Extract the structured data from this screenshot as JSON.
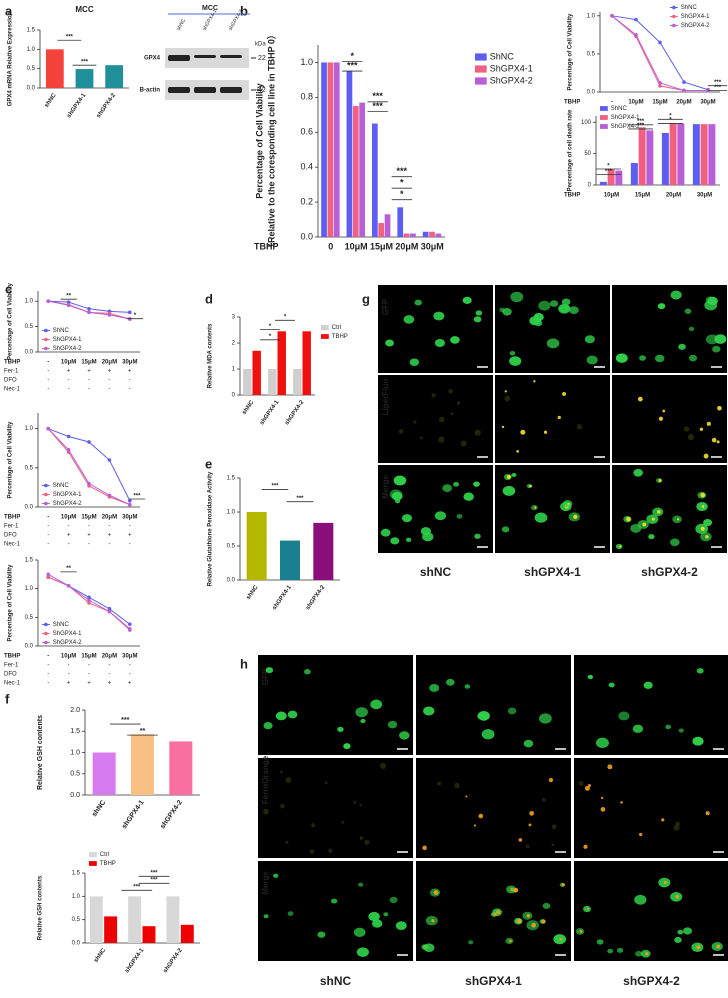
{
  "chart_data": [
    {
      "type": "bar",
      "title": "MCC",
      "ylabel": "GPX4 mRNA Relative Expression",
      "categories": [
        "shNC",
        "shGPX4-1",
        "shGPX4-2"
      ],
      "values": [
        1.0,
        0.49,
        0.59
      ],
      "colors": [
        "#f4433c",
        "#1f8f9a",
        "#1f8f9a"
      ],
      "ylim": [
        0,
        1.5
      ],
      "yticks": [
        {
          "value": 0,
          "label": "0.0"
        },
        0.5,
        {
          "value": 1,
          "label": "1.0"
        },
        1.5
      ],
      "annotations": [
        "***",
        "***"
      ]
    },
    {
      "type": "bar",
      "ylabel": [
        "Percentage of Cell Viability",
        "（Relative to the coresponding cell line in TBHP 0）"
      ],
      "xlabel": "TBHP",
      "categories": [
        "0",
        "10μM",
        "15μM",
        "20μM",
        "30μM"
      ],
      "series": [
        {
          "name": "ShNC",
          "color": "#5b5ef0",
          "values": [
            1.0,
            0.95,
            0.65,
            0.17,
            0.03
          ]
        },
        {
          "name": "ShGPX4-1",
          "color": "#f0607f",
          "values": [
            1.0,
            0.75,
            0.08,
            0.02,
            0.03
          ]
        },
        {
          "name": "ShGPX4-2",
          "color": "#b85fd8",
          "values": [
            1.0,
            0.77,
            0.13,
            0.02,
            0.02
          ]
        }
      ],
      "ylim": [
        0,
        1.1
      ],
      "yticks": [
        {
          "value": 0,
          "label": "0.0"
        },
        0.2,
        0.4,
        0.6,
        0.8,
        {
          "value": 1,
          "label": "1.0"
        }
      ],
      "legend": "right",
      "annotations": [
        "*",
        "***",
        "***",
        "***",
        "***",
        "*",
        "*"
      ]
    },
    {
      "type": "line",
      "ylabel": "Percentage of Cell Viability",
      "xlabel": "TBHP",
      "categories": [
        "-",
        "10μM",
        "15μM",
        "20μM",
        "30μM"
      ],
      "series": [
        {
          "name": "ShNC",
          "color": "#5b5ef0",
          "values": [
            1.0,
            0.95,
            0.65,
            0.13,
            0.03
          ]
        },
        {
          "name": "ShGPX4-1",
          "color": "#f0607f",
          "values": [
            1.0,
            0.73,
            0.08,
            0.02,
            0.02
          ]
        },
        {
          "name": "ShGPX4-2",
          "color": "#b85fd8",
          "values": [
            1.0,
            0.75,
            0.12,
            0.02,
            0.02
          ]
        }
      ],
      "ylim": [
        0,
        1.05
      ],
      "yticks": [
        {
          "value": 0,
          "label": "0.0"
        },
        0.5,
        {
          "value": 1,
          "label": "1.0"
        }
      ],
      "legend": "top-right",
      "annotations": [
        "***",
        "***"
      ]
    },
    {
      "type": "bar",
      "ylabel": "Percentage of cell death rate",
      "xlabel": "TBHP",
      "categories": [
        "10μM",
        "15μM",
        "20μM",
        "30μM"
      ],
      "series": [
        {
          "name": "ShNC",
          "color": "#5b5ef0",
          "values": [
            5,
            35,
            83,
            97
          ]
        },
        {
          "name": "ShGPX4-1",
          "color": "#f0607f",
          "values": [
            25,
            92,
            98,
            97
          ]
        },
        {
          "name": "ShGPX4-2",
          "color": "#b85fd8",
          "values": [
            23,
            87,
            98,
            97
          ]
        }
      ],
      "ylim": [
        0,
        110
      ],
      "yticks": [
        0,
        50,
        100
      ],
      "legend": "top-left",
      "annotations": [
        "*",
        "***",
        "***",
        "***",
        "*",
        "*"
      ]
    },
    {
      "type": "line",
      "ylabel": "Percentage of Cell Viability",
      "xlabel": "TBHP",
      "categories": [
        "-",
        "10μM",
        "15μM",
        "20μM",
        "30μM"
      ],
      "treatments": [
        {
          "name": "Fer-1",
          "labels": [
            "-",
            "+",
            "+",
            "+",
            "+"
          ]
        },
        {
          "name": "DFO",
          "labels": [
            "-",
            "-",
            "-",
            "-",
            "-"
          ]
        },
        {
          "name": "Nec-1",
          "labels": [
            "-",
            "-",
            "-",
            "-",
            "-"
          ]
        }
      ],
      "series": [
        {
          "name": "ShNC",
          "color": "#5b5ef0",
          "values": [
            1.0,
            0.98,
            0.85,
            0.8,
            0.78
          ]
        },
        {
          "name": "ShGPX4-1",
          "color": "#f0607f",
          "values": [
            1.0,
            0.93,
            0.78,
            0.76,
            0.65
          ]
        },
        {
          "name": "ShGPX4-2",
          "color": "#b85fd8",
          "values": [
            1.0,
            0.92,
            0.78,
            0.73,
            0.65
          ]
        }
      ],
      "ylim": [
        0,
        1.2
      ],
      "yticks": [
        {
          "value": 0,
          "label": "0.0"
        },
        0.5,
        {
          "value": 1,
          "label": "1.0"
        }
      ],
      "legend": "bottom-left",
      "annotations": [
        "**",
        "*"
      ]
    },
    {
      "type": "line",
      "ylabel": "Percentage of Cell Viability",
      "xlabel": "TBHP",
      "categories": [
        "-",
        "10μM",
        "15μM",
        "20μM",
        "30μM"
      ],
      "treatments": [
        {
          "name": "Fer-1",
          "labels": [
            "-",
            "-",
            "-",
            "-",
            "-"
          ]
        },
        {
          "name": "DFO",
          "labels": [
            "-",
            "+",
            "+",
            "+",
            "+"
          ]
        },
        {
          "name": "Nec-1",
          "labels": [
            "-",
            "-",
            "-",
            "-",
            "-"
          ]
        }
      ],
      "series": [
        {
          "name": "ShNC",
          "color": "#5b5ef0",
          "values": [
            1.0,
            0.9,
            0.83,
            0.6,
            0.08
          ]
        },
        {
          "name": "ShGPX4-1",
          "color": "#f0607f",
          "values": [
            1.0,
            0.7,
            0.27,
            0.13,
            0.03
          ]
        },
        {
          "name": "ShGPX4-2",
          "color": "#b85fd8",
          "values": [
            1.0,
            0.73,
            0.3,
            0.15,
            0.03
          ]
        }
      ],
      "ylim": [
        0,
        1.2
      ],
      "yticks": [
        {
          "value": 0,
          "label": "0.0"
        },
        0.5,
        {
          "value": 1,
          "label": "1.0"
        }
      ],
      "legend": "bottom-left",
      "annotations": [
        "***"
      ]
    },
    {
      "type": "line",
      "ylabel": "Percentage of Cell Viability",
      "xlabel": "TBHP",
      "categories": [
        "-",
        "10μM",
        "15μM",
        "20μM",
        "30μM"
      ],
      "treatments": [
        {
          "name": "Fer-1",
          "labels": [
            "-",
            "-",
            "-",
            "-",
            "-"
          ]
        },
        {
          "name": "DFO",
          "labels": [
            "-",
            "-",
            "-",
            "-",
            "-"
          ]
        },
        {
          "name": "Nec-1",
          "labels": [
            "-",
            "+",
            "+",
            "+",
            "+"
          ]
        }
      ],
      "series": [
        {
          "name": "ShNC",
          "color": "#5b5ef0",
          "values": [
            1.2,
            1.05,
            0.85,
            0.65,
            0.38
          ]
        },
        {
          "name": "ShGPX4-1",
          "color": "#f0607f",
          "values": [
            1.2,
            1.05,
            0.75,
            0.6,
            0.3
          ]
        },
        {
          "name": "ShGPX4-2",
          "color": "#b85fd8",
          "values": [
            1.25,
            1.05,
            0.8,
            0.6,
            0.28
          ]
        }
      ],
      "ylim": [
        0,
        1.5
      ],
      "yticks": [
        {
          "value": 0,
          "label": "0.0"
        },
        0.5,
        {
          "value": 1,
          "label": "1.0"
        },
        1.5
      ],
      "legend": "bottom-left",
      "annotations": [
        "**"
      ]
    },
    {
      "type": "bar",
      "ylabel": "Relative MDA contents",
      "categories": [
        "shNC",
        "shGPX4-1",
        "shGPX4-2"
      ],
      "series": [
        {
          "name": "Ctrl",
          "color": "#cfcfcf",
          "values": [
            1,
            1,
            1
          ]
        },
        {
          "name": "TBHP",
          "color": "#f01010",
          "values": [
            1.7,
            2.45,
            2.45
          ]
        }
      ],
      "ylim": [
        0,
        3
      ],
      "yticks": [
        0,
        1,
        2,
        3
      ],
      "legend": "right",
      "annotations": [
        "*",
        "*",
        "*"
      ]
    },
    {
      "type": "bar",
      "ylabel": "Relative Glutathione Peroxidase Activity",
      "categories": [
        "shNC",
        "shGPX4-1",
        "shGPX4-2"
      ],
      "values": [
        1.0,
        0.58,
        0.84
      ],
      "colors": [
        "#b5b800",
        "#1a7f8e",
        "#8a0f7a"
      ],
      "ylim": [
        0,
        1.5
      ],
      "yticks": [
        {
          "value": 0,
          "label": "0.0"
        },
        0.5,
        {
          "value": 1,
          "label": "1.0"
        },
        1.5
      ],
      "annotations": [
        "***",
        "***"
      ]
    },
    {
      "type": "bar",
      "ylabel": "Relative GSH contents",
      "categories": [
        "shNC",
        "shGPX4-1",
        "shGPX4-2"
      ],
      "values": [
        1.0,
        1.43,
        1.26
      ],
      "colors": [
        "#d77cf0",
        "#f8c084",
        "#f86fa0"
      ],
      "ylim": [
        0,
        2
      ],
      "yticks": [
        {
          "value": 0,
          "label": "0.0"
        },
        0.5,
        {
          "value": 1,
          "label": "1.0"
        },
        1.5,
        {
          "value": 2,
          "label": "2.0"
        }
      ],
      "annotations": [
        "***",
        "**"
      ]
    },
    {
      "type": "bar",
      "ylabel": "Relative GSH contents",
      "categories": [
        "shNC",
        "shGPX4-1",
        "shGPX4-2"
      ],
      "series": [
        {
          "name": "Ctrl",
          "color": "#d8d8d8",
          "values": [
            1,
            1,
            1
          ]
        },
        {
          "name": "TBHP",
          "color": "#ee0000",
          "values": [
            0.57,
            0.36,
            0.39
          ]
        }
      ],
      "ylim": [
        0,
        1.5
      ],
      "yticks": [
        {
          "value": 0,
          "label": "0.0"
        },
        0.5,
        {
          "value": 1,
          "label": "1.0"
        },
        1.5
      ],
      "legend": "top-left",
      "annotations": [
        "***",
        "***",
        "***"
      ]
    }
  ],
  "panel_letters": [
    "a",
    "b",
    "c",
    "d",
    "e",
    "f",
    "g",
    "h"
  ],
  "blot": {
    "title": "MCC",
    "lanes": [
      "shNC",
      "shGPX4-1",
      "shGPX4-2"
    ],
    "unit": "kDa",
    "rows": [
      {
        "name": "GPX4",
        "kda": "22"
      },
      {
        "name": "B-actin",
        "kda": "42"
      }
    ]
  },
  "micro_g": {
    "rows": [
      "GFP",
      "LiperFluo",
      "Merge"
    ],
    "columns": [
      "shNC",
      "shGPX4-1",
      "shGPX4-2"
    ]
  },
  "micro_h": {
    "rows": [
      "GFP",
      "FerroOrange",
      "Merge"
    ],
    "columns": [
      "shNC",
      "shGPX4-1",
      "shGPX4-2"
    ]
  }
}
